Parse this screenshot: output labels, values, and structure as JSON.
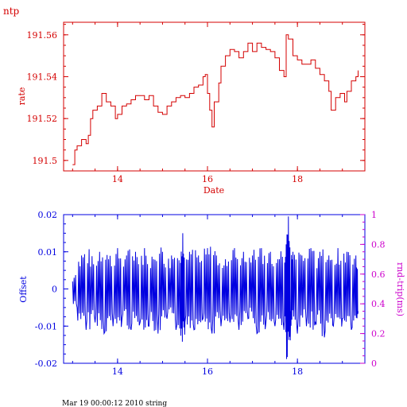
{
  "colors": {
    "top": "#d40000",
    "bottom_left": "#0000e0",
    "bottom_right": "#cc00cc",
    "footer": "#000000"
  },
  "top": {
    "corner_title": "ntp",
    "xlabel": "Date",
    "ylabel": "rate",
    "xticks": [
      "14",
      "16",
      "18"
    ],
    "yticks": [
      "191.5",
      "191.52",
      "191.54",
      "191.56"
    ]
  },
  "bottom": {
    "ylabel_left": "Offset",
    "ylabel_right": "rnd-trip(ms)",
    "xticks": [
      "14",
      "16",
      "18"
    ],
    "yticks_left": [
      "-0.02",
      "-0.01",
      "0",
      "0.01",
      "0.02"
    ],
    "yticks_right": [
      "0",
      "0.2",
      "0.4",
      "0.6",
      "0.8",
      "1"
    ]
  },
  "footer": {
    "text": "Mar 19 00:00:12 2010 string"
  },
  "chart_data": [
    {
      "type": "line",
      "xlabel": "Date",
      "ylabel": "rate",
      "xlim": [
        12.8,
        19.5
      ],
      "ylim": [
        191.495,
        191.566
      ],
      "x_ticks": [
        14,
        16,
        18
      ],
      "y_ticks": [
        191.5,
        191.52,
        191.54,
        191.56
      ],
      "series": [
        {
          "color": "#d40000",
          "points": [
            [
              13.0,
              191.498
            ],
            [
              13.05,
              191.505
            ],
            [
              13.1,
              191.507
            ],
            [
              13.2,
              191.51
            ],
            [
              13.3,
              191.508
            ],
            [
              13.35,
              191.512
            ],
            [
              13.4,
              191.52
            ],
            [
              13.45,
              191.524
            ],
            [
              13.55,
              191.526
            ],
            [
              13.65,
              191.532
            ],
            [
              13.75,
              191.528
            ],
            [
              13.85,
              191.526
            ],
            [
              13.95,
              191.52
            ],
            [
              14.0,
              191.522
            ],
            [
              14.1,
              191.526
            ],
            [
              14.2,
              191.527
            ],
            [
              14.3,
              191.529
            ],
            [
              14.4,
              191.531
            ],
            [
              14.5,
              191.531
            ],
            [
              14.6,
              191.529
            ],
            [
              14.7,
              191.531
            ],
            [
              14.8,
              191.526
            ],
            [
              14.9,
              191.523
            ],
            [
              15.0,
              191.522
            ],
            [
              15.1,
              191.526
            ],
            [
              15.2,
              191.528
            ],
            [
              15.3,
              191.53
            ],
            [
              15.4,
              191.531
            ],
            [
              15.5,
              191.53
            ],
            [
              15.6,
              191.532
            ],
            [
              15.7,
              191.535
            ],
            [
              15.8,
              191.536
            ],
            [
              15.9,
              191.54
            ],
            [
              15.95,
              191.541
            ],
            [
              16.0,
              191.532
            ],
            [
              16.05,
              191.524
            ],
            [
              16.1,
              191.516
            ],
            [
              16.15,
              191.528
            ],
            [
              16.25,
              191.537
            ],
            [
              16.3,
              191.545
            ],
            [
              16.4,
              191.55
            ],
            [
              16.5,
              191.553
            ],
            [
              16.6,
              191.552
            ],
            [
              16.7,
              191.549
            ],
            [
              16.8,
              191.552
            ],
            [
              16.9,
              191.556
            ],
            [
              17.0,
              191.552
            ],
            [
              17.1,
              191.556
            ],
            [
              17.2,
              191.554
            ],
            [
              17.3,
              191.553
            ],
            [
              17.4,
              191.552
            ],
            [
              17.5,
              191.549
            ],
            [
              17.6,
              191.543
            ],
            [
              17.7,
              191.54
            ],
            [
              17.75,
              191.56
            ],
            [
              17.8,
              191.558
            ],
            [
              17.9,
              191.55
            ],
            [
              18.0,
              191.548
            ],
            [
              18.1,
              191.546
            ],
            [
              18.2,
              191.546
            ],
            [
              18.3,
              191.548
            ],
            [
              18.4,
              191.544
            ],
            [
              18.5,
              191.541
            ],
            [
              18.6,
              191.538
            ],
            [
              18.7,
              191.533
            ],
            [
              18.75,
              191.524
            ],
            [
              18.85,
              191.53
            ],
            [
              18.95,
              191.532
            ],
            [
              19.05,
              191.528
            ],
            [
              19.1,
              191.533
            ],
            [
              19.2,
              191.538
            ],
            [
              19.3,
              191.54
            ],
            [
              19.35,
              191.543
            ]
          ]
        }
      ]
    },
    {
      "type": "line",
      "ylabel": "Offset",
      "ylabel_right": "rnd-trip(ms)",
      "xlim": [
        12.8,
        19.5
      ],
      "ylim": [
        -0.02,
        0.02
      ],
      "ylim_right": [
        0,
        1
      ],
      "x_ticks": [
        14,
        16,
        18
      ],
      "y_ticks": [
        -0.02,
        -0.01,
        0,
        0.01,
        0.02
      ],
      "y_ticks_right": [
        0,
        0.2,
        0.4,
        0.6,
        0.8,
        1
      ],
      "series": [
        {
          "color": "#0000e0",
          "points": [
            [
              13.0,
              0.002
            ],
            [
              13.1,
              -0.005
            ],
            [
              13.2,
              0.009
            ],
            [
              13.3,
              -0.011
            ],
            [
              13.4,
              0.006
            ],
            [
              13.5,
              -0.009
            ],
            [
              13.6,
              0.01
            ],
            [
              13.7,
              -0.012
            ],
            [
              13.8,
              0.008
            ],
            [
              13.9,
              -0.01
            ],
            [
              14.0,
              0.011
            ],
            [
              14.1,
              -0.008
            ],
            [
              14.2,
              0.009
            ],
            [
              14.3,
              -0.011
            ],
            [
              14.4,
              0.01
            ],
            [
              14.5,
              -0.009
            ],
            [
              14.6,
              0.011
            ],
            [
              14.7,
              -0.01
            ],
            [
              14.8,
              0.008
            ],
            [
              14.9,
              -0.012
            ],
            [
              15.0,
              0.01
            ],
            [
              15.1,
              -0.008
            ],
            [
              15.2,
              0.009
            ],
            [
              15.3,
              -0.011
            ],
            [
              15.4,
              0.007
            ],
            [
              15.45,
              0.015
            ],
            [
              15.5,
              -0.009
            ],
            [
              15.6,
              0.01
            ],
            [
              15.7,
              -0.011
            ],
            [
              15.8,
              0.009
            ],
            [
              15.9,
              -0.008
            ],
            [
              16.0,
              0.011
            ],
            [
              16.1,
              -0.012
            ],
            [
              16.2,
              0.009
            ],
            [
              16.3,
              -0.01
            ],
            [
              16.4,
              0.008
            ],
            [
              16.5,
              -0.009
            ],
            [
              16.6,
              0.011
            ],
            [
              16.7,
              -0.011
            ],
            [
              16.8,
              0.01
            ],
            [
              16.9,
              -0.008
            ],
            [
              17.0,
              0.009
            ],
            [
              17.1,
              -0.012
            ],
            [
              17.2,
              0.011
            ],
            [
              17.3,
              -0.009
            ],
            [
              17.4,
              0.01
            ],
            [
              17.5,
              -0.01
            ],
            [
              17.6,
              0.008
            ],
            [
              17.7,
              -0.011
            ],
            [
              17.75,
              0.012
            ],
            [
              17.8,
              0.0195
            ],
            [
              17.85,
              -0.006
            ],
            [
              17.9,
              0.01
            ],
            [
              18.0,
              -0.012
            ],
            [
              18.1,
              0.009
            ],
            [
              18.2,
              -0.01
            ],
            [
              18.3,
              0.011
            ],
            [
              18.4,
              -0.009
            ],
            [
              18.5,
              0.01
            ],
            [
              18.6,
              -0.013
            ],
            [
              18.7,
              0.009
            ],
            [
              18.8,
              -0.01
            ],
            [
              18.9,
              0.011
            ],
            [
              19.0,
              -0.008
            ],
            [
              19.1,
              0.01
            ],
            [
              19.2,
              -0.011
            ],
            [
              19.3,
              0.009
            ],
            [
              19.35,
              -0.006
            ]
          ]
        }
      ]
    }
  ]
}
